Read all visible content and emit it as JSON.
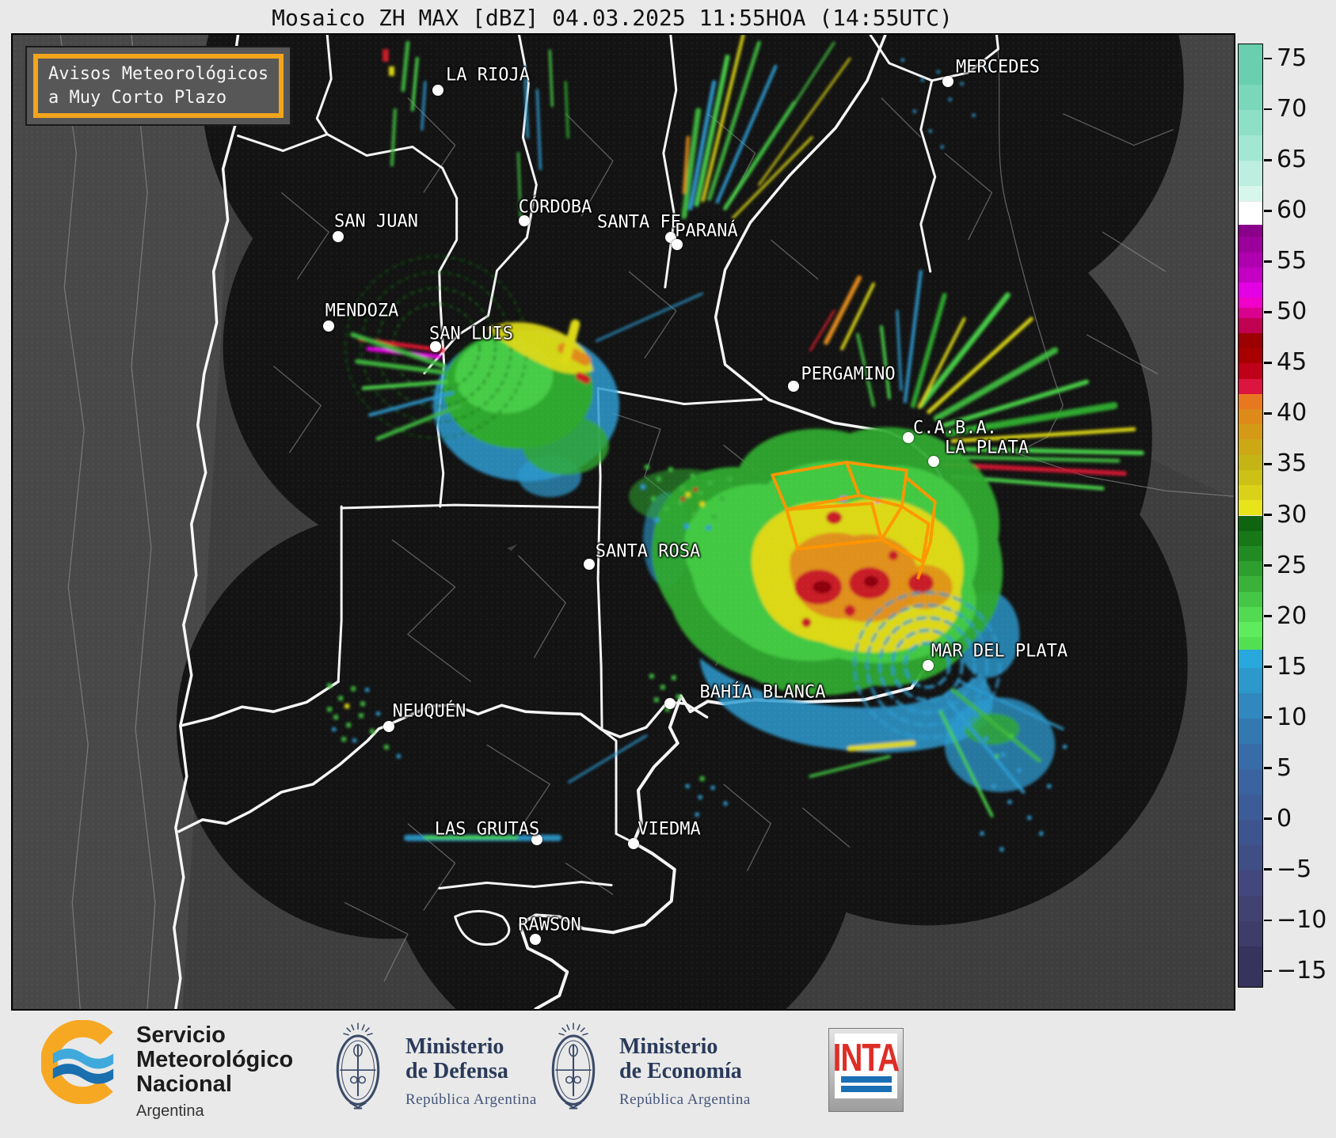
{
  "title": "Mosaico ZH MAX [dBZ] 04.03.2025 11:55HOA (14:55UTC)",
  "warning_box": {
    "line1": "Avisos Meteorológicos",
    "line2": "a Muy Corto Plazo",
    "border_color": "#F2A51C"
  },
  "colorbar": {
    "unit": "dBZ",
    "vmin": -16.5,
    "vmax": 76.5,
    "ticks": [
      75,
      70,
      65,
      60,
      55,
      50,
      45,
      40,
      35,
      30,
      25,
      20,
      15,
      10,
      5,
      0,
      -5,
      -10,
      -15
    ],
    "segments": [
      [
        76.5,
        72.5,
        "#69CFAE"
      ],
      [
        72.5,
        70,
        "#7AD7BA"
      ],
      [
        70,
        67.5,
        "#8DDFC6"
      ],
      [
        67.5,
        65,
        "#A2E7D2"
      ],
      [
        65,
        62.5,
        "#BCEFDF"
      ],
      [
        62.5,
        61,
        "#D8F7EC"
      ],
      [
        61,
        58.7,
        "#FFFFFF"
      ],
      [
        58.7,
        57.5,
        "#8A008A"
      ],
      [
        57.5,
        56,
        "#9C009C"
      ],
      [
        56,
        54.5,
        "#AE00AE"
      ],
      [
        54.5,
        53,
        "#C400C4"
      ],
      [
        53,
        51.5,
        "#E400E4"
      ],
      [
        51.5,
        50.5,
        "#F000C8"
      ],
      [
        50.5,
        49.5,
        "#D8008C"
      ],
      [
        49.5,
        48,
        "#C00050"
      ],
      [
        48,
        46.5,
        "#9C0000"
      ],
      [
        46.5,
        45,
        "#A80000"
      ],
      [
        45,
        43.5,
        "#BE0018"
      ],
      [
        43.5,
        42,
        "#DC1440"
      ],
      [
        42,
        40.5,
        "#E87820"
      ],
      [
        40.5,
        39,
        "#DE8A18"
      ],
      [
        39,
        37.5,
        "#D49A16"
      ],
      [
        37.5,
        36,
        "#CCA814"
      ],
      [
        36,
        34.5,
        "#C4B414"
      ],
      [
        34.5,
        33,
        "#CCC216"
      ],
      [
        33,
        31.5,
        "#DAD218"
      ],
      [
        31.5,
        30,
        "#E8E41A"
      ],
      [
        30,
        28.5,
        "#106410"
      ],
      [
        28.5,
        27,
        "#187818"
      ],
      [
        27,
        25.5,
        "#228A22"
      ],
      [
        25.5,
        24,
        "#2E9E2E"
      ],
      [
        24,
        22.5,
        "#3AB23A"
      ],
      [
        22.5,
        21,
        "#46C646"
      ],
      [
        21,
        19.5,
        "#52DA52"
      ],
      [
        19.5,
        18,
        "#5EEC5E"
      ],
      [
        18,
        16.8,
        "#52E052"
      ],
      [
        16.8,
        15,
        "#28A8DC"
      ],
      [
        15,
        12.5,
        "#2C98CC"
      ],
      [
        12.5,
        10,
        "#3088BE"
      ],
      [
        10,
        7.5,
        "#3478B2"
      ],
      [
        7.5,
        5,
        "#386CA8"
      ],
      [
        5,
        2.5,
        "#3A64A0"
      ],
      [
        2.5,
        0,
        "#3C5C98"
      ],
      [
        0,
        -2.5,
        "#3E548E"
      ],
      [
        -2.5,
        -5,
        "#404E86"
      ],
      [
        -5,
        -7.5,
        "#42487E"
      ],
      [
        -7.5,
        -10,
        "#424272"
      ],
      [
        -10,
        -12.5,
        "#3E3C68"
      ],
      [
        -12.5,
        -16.5,
        "#36335C"
      ]
    ]
  },
  "cities": [
    {
      "name": "MERCEDES",
      "dot": [
        1197,
        103
      ],
      "label": [
        1260,
        85
      ]
    },
    {
      "name": "LA RIOJA",
      "dot": [
        553,
        114
      ],
      "label": [
        616,
        95
      ]
    },
    {
      "name": "SAN JUAN",
      "dot": [
        427,
        299
      ],
      "label": [
        475,
        280
      ]
    },
    {
      "name": "CÓRDOBA",
      "dot": [
        662,
        279
      ],
      "label": [
        701,
        262
      ]
    },
    {
      "name": "SANTA FE",
      "dot": [
        847,
        300
      ],
      "label": [
        807,
        281
      ]
    },
    {
      "name": "PARANÁ",
      "dot": [
        855,
        309
      ],
      "label": [
        892,
        292
      ]
    },
    {
      "name": "MENDOZA",
      "dot": [
        415,
        412
      ],
      "label": [
        457,
        393
      ]
    },
    {
      "name": "SAN LUIS",
      "dot": [
        550,
        438
      ],
      "label": [
        595,
        422
      ]
    },
    {
      "name": "PERGAMINO",
      "dot": [
        1002,
        488
      ],
      "label": [
        1071,
        473
      ]
    },
    {
      "name": "C.A.B.A.",
      "dot": [
        1147,
        553
      ],
      "label": [
        1206,
        541
      ]
    },
    {
      "name": "LA PLATA",
      "dot": [
        1179,
        583
      ],
      "label": [
        1246,
        566
      ]
    },
    {
      "name": "SANTA ROSA",
      "dot": [
        744,
        713
      ],
      "label": [
        818,
        697
      ]
    },
    {
      "name": "MAR DEL PLATA",
      "dot": [
        1172,
        841
      ],
      "label": [
        1262,
        823
      ]
    },
    {
      "name": "BAHÍA BLANCA",
      "dot": [
        846,
        889
      ],
      "label": [
        963,
        875
      ]
    },
    {
      "name": "NEUQUÉN",
      "dot": [
        491,
        918
      ],
      "label": [
        542,
        899
      ]
    },
    {
      "name": "LAS GRUTAS",
      "dot": [
        678,
        1061
      ],
      "label": [
        615,
        1048
      ]
    },
    {
      "name": "VIEDMA",
      "dot": [
        800,
        1066
      ],
      "label": [
        845,
        1048
      ]
    },
    {
      "name": "RAWSON",
      "dot": [
        676,
        1187
      ],
      "label": [
        694,
        1169
      ]
    }
  ],
  "map": {
    "background": "#3E3E3E",
    "radar_coverage_color": "#131313",
    "border_color": "#FFFFFF"
  },
  "footer": {
    "smn": {
      "name_lines": [
        "Servicio",
        "Meteorológico",
        "Nacional"
      ],
      "country": "Argentina"
    },
    "ministries": [
      {
        "title_lines": [
          "Ministerio",
          "de Defensa"
        ],
        "subtitle": "República Argentina"
      },
      {
        "title_lines": [
          "Ministerio",
          "de Economía"
        ],
        "subtitle": "República Argentina"
      }
    ],
    "inta": {
      "label": "INTA"
    }
  }
}
